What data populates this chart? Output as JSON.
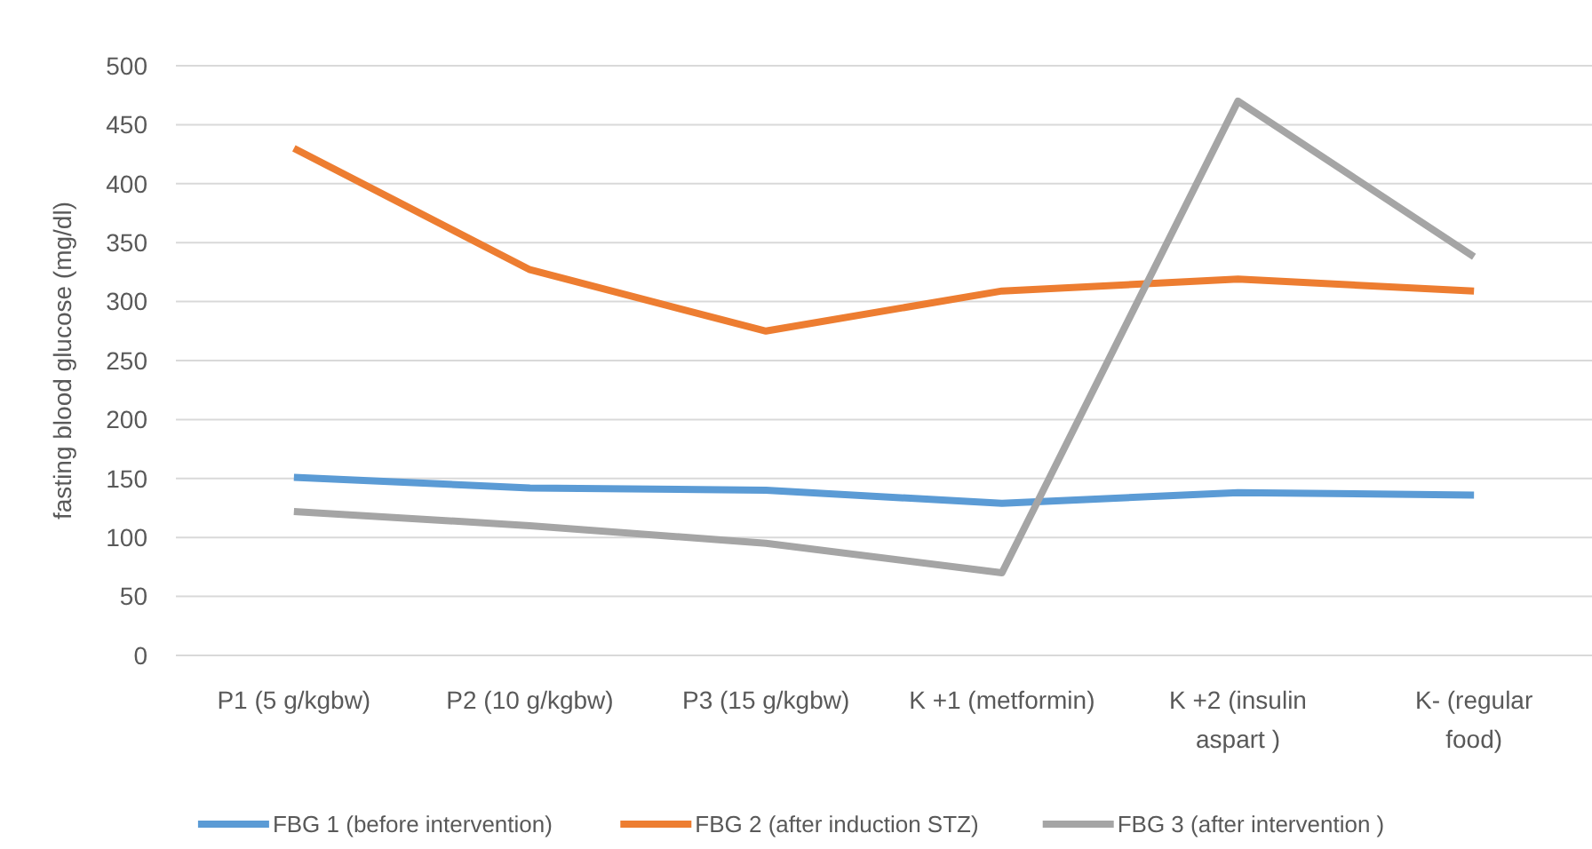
{
  "chart_data": {
    "type": "line",
    "ylabel": "fasting blood glucose (mg/dl)",
    "categories": [
      "P1 (5 g/kgbw)",
      "P2 (10 g/kgbw)",
      "P3 (15 g/kgbw)",
      "K +1 (metformin)",
      "K +2 (insulin aspart )",
      "K- (regular food)"
    ],
    "series": [
      {
        "name": "FBG 1 (before intervention)",
        "color": "#5b9bd5",
        "values": [
          151,
          142,
          140,
          129,
          138,
          136
        ]
      },
      {
        "name": "FBG 2 (after induction STZ)",
        "color": "#ed7d31",
        "values": [
          430,
          327,
          275,
          309,
          319,
          309
        ]
      },
      {
        "name": "FBG 3 (after intervention )",
        "color": "#a5a5a5",
        "values": [
          122,
          110,
          95,
          70,
          470,
          338
        ]
      }
    ],
    "ylim": [
      0,
      500
    ],
    "yticks": [
      0,
      50,
      100,
      150,
      200,
      250,
      300,
      350,
      400,
      450,
      500
    ],
    "grid": "y",
    "legend": "bottom",
    "marker": "none",
    "line_style": "solid"
  }
}
